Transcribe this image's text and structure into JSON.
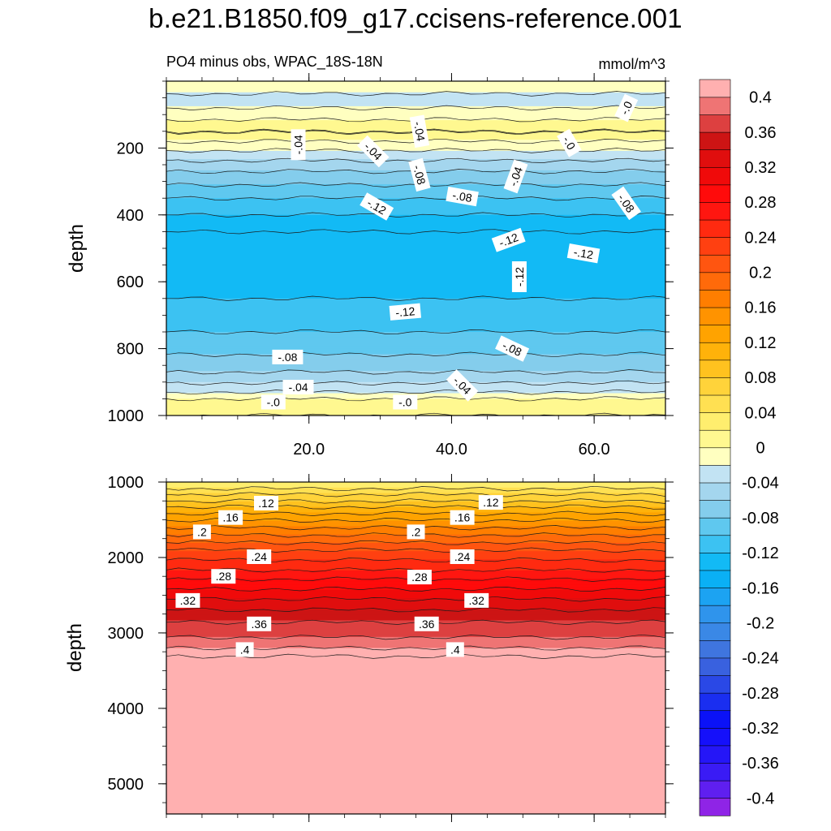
{
  "title": "b.e21.B1850.f09_g17.ccisens-reference.001",
  "chart_data": {
    "type": "contour",
    "variable": "PO4 minus obs, WPAC_18S-18N",
    "units": "mmol/m^3",
    "panels": [
      {
        "name": "upper",
        "ylabel": "depth",
        "ylim": [
          1000,
          0
        ],
        "yticks": [
          "200",
          "400",
          "600",
          "800",
          "1000"
        ],
        "ytick_values": [
          200,
          400,
          600,
          800,
          1000
        ],
        "xlim": [
          0,
          70
        ],
        "xtick_values": [
          20,
          40,
          60
        ],
        "xtick_labels": [
          "20.0",
          "40.0",
          "60.0"
        ],
        "depth_profile": [
          {
            "depth": 10,
            "value": -0.01
          },
          {
            "depth": 60,
            "value": -0.03
          },
          {
            "depth": 150,
            "value": 0.02
          },
          {
            "depth": 250,
            "value": -0.05
          },
          {
            "depth": 350,
            "value": -0.1
          },
          {
            "depth": 450,
            "value": -0.14
          },
          {
            "depth": 550,
            "value": -0.13
          },
          {
            "depth": 650,
            "value": -0.12
          },
          {
            "depth": 750,
            "value": -0.1
          },
          {
            "depth": 850,
            "value": -0.07
          },
          {
            "depth": 920,
            "value": -0.03
          },
          {
            "depth": 960,
            "value": 0.01
          },
          {
            "depth": 1000,
            "value": 0.02
          }
        ],
        "contour_labels": [
          {
            "text": "-.04",
            "x": 18.5,
            "depth": 190,
            "angle": 90
          },
          {
            "text": "-.04",
            "x": 29,
            "depth": 210,
            "angle": -45
          },
          {
            "text": "-.04",
            "x": 35.5,
            "depth": 150,
            "angle": -80
          },
          {
            "text": "-.08",
            "x": 35.5,
            "depth": 280,
            "angle": -75
          },
          {
            "text": "-.08",
            "x": 41.5,
            "depth": 345,
            "angle": -10
          },
          {
            "text": "-.12",
            "x": 29.5,
            "depth": 375,
            "angle": -30
          },
          {
            "text": "-.12",
            "x": 48,
            "depth": 475,
            "angle": 20
          },
          {
            "text": "-.12",
            "x": 58.5,
            "depth": 515,
            "angle": -10
          },
          {
            "text": "-.12",
            "x": 49.5,
            "depth": 585,
            "angle": 90
          },
          {
            "text": "-.04",
            "x": 49,
            "depth": 285,
            "angle": 70
          },
          {
            "text": "-.0",
            "x": 56.5,
            "depth": 185,
            "angle": -60
          },
          {
            "text": "-.0",
            "x": 64.5,
            "depth": 80,
            "angle": 65
          },
          {
            "text": "-.08",
            "x": 64.5,
            "depth": 365,
            "angle": -55
          },
          {
            "text": "-.12",
            "x": 33.5,
            "depth": 690,
            "angle": 5
          },
          {
            "text": "-.08",
            "x": 17,
            "depth": 825,
            "angle": 0
          },
          {
            "text": "-.08",
            "x": 48.5,
            "depth": 800,
            "angle": -25
          },
          {
            "text": "-.04",
            "x": 18.5,
            "depth": 915,
            "angle": 0
          },
          {
            "text": "-.04",
            "x": 41.5,
            "depth": 910,
            "angle": -45
          },
          {
            "text": "-.0",
            "x": 15,
            "depth": 960,
            "angle": 0
          },
          {
            "text": "-.0",
            "x": 33.5,
            "depth": 960,
            "angle": 0
          }
        ]
      },
      {
        "name": "lower",
        "ylabel": "depth",
        "ylim": [
          5400,
          1000
        ],
        "yticks": [
          "1000",
          "2000",
          "3000",
          "4000",
          "5000"
        ],
        "ytick_values": [
          1000,
          2000,
          3000,
          4000,
          5000
        ],
        "xlim": [
          0,
          70
        ],
        "xtick_values": [
          20,
          40,
          60
        ],
        "depth_profile": [
          {
            "depth": 1000,
            "value": 0.02
          },
          {
            "depth": 1450,
            "value": 0.13
          },
          {
            "depth": 1900,
            "value": 0.22
          },
          {
            "depth": 2350,
            "value": 0.29
          },
          {
            "depth": 2750,
            "value": 0.35
          },
          {
            "depth": 3150,
            "value": 0.39
          },
          {
            "depth": 3300,
            "value": 0.42
          },
          {
            "depth": 5400,
            "value": 0.42
          }
        ],
        "contour_labels": [
          {
            "text": ".12",
            "x": 14,
            "depth": 1280,
            "angle": 0
          },
          {
            "text": ".12",
            "x": 45.5,
            "depth": 1270,
            "angle": 0
          },
          {
            "text": ".16",
            "x": 9,
            "depth": 1470,
            "angle": 0
          },
          {
            "text": ".16",
            "x": 41.5,
            "depth": 1470,
            "angle": 0
          },
          {
            "text": ".2",
            "x": 5,
            "depth": 1660,
            "angle": 0
          },
          {
            "text": ".2",
            "x": 35,
            "depth": 1660,
            "angle": 0
          },
          {
            "text": ".24",
            "x": 13,
            "depth": 1990,
            "angle": 0
          },
          {
            "text": ".24",
            "x": 41.5,
            "depth": 1990,
            "angle": 0
          },
          {
            "text": ".28",
            "x": 8,
            "depth": 2250,
            "angle": 0
          },
          {
            "text": ".28",
            "x": 35.5,
            "depth": 2260,
            "angle": 0
          },
          {
            "text": ".32",
            "x": 3,
            "depth": 2570,
            "angle": 0
          },
          {
            "text": ".32",
            "x": 43.5,
            "depth": 2570,
            "angle": 0
          },
          {
            "text": ".36",
            "x": 13,
            "depth": 2880,
            "angle": 0
          },
          {
            "text": ".36",
            "x": 36.5,
            "depth": 2880,
            "angle": 0
          },
          {
            "text": ".4",
            "x": 11,
            "depth": 3220,
            "angle": 0
          },
          {
            "text": ".4",
            "x": 40.5,
            "depth": 3220,
            "angle": 0
          }
        ]
      }
    ],
    "colorbar": {
      "levels": [
        -0.42,
        -0.4,
        -0.38,
        -0.36,
        -0.34,
        -0.32,
        -0.3,
        -0.28,
        -0.26,
        -0.24,
        -0.22,
        -0.2,
        -0.18,
        -0.16,
        -0.14,
        -0.12,
        -0.1,
        -0.08,
        -0.06,
        -0.04,
        -0.02,
        0,
        0.02,
        0.04,
        0.06,
        0.08,
        0.1,
        0.12,
        0.14,
        0.16,
        0.18,
        0.2,
        0.22,
        0.24,
        0.26,
        0.28,
        0.3,
        0.32,
        0.34,
        0.36,
        0.38,
        0.4,
        0.42
      ],
      "colors": [
        "#8f24e6",
        "#5f1ff0",
        "#3a1bf5",
        "#2516f7",
        "#1510fa",
        "#0b12f7",
        "#1a2ef0",
        "#2a48e6",
        "#3961df",
        "#3f75df",
        "#3a88e6",
        "#2f94ec",
        "#1ca3f2",
        "#0ab0f5",
        "#12baf5",
        "#3cc2f2",
        "#5fc8ef",
        "#84cdec",
        "#a4d6ee",
        "#c2e3f3",
        "#ffffc0",
        "#fff890",
        "#ffee6e",
        "#ffe052",
        "#ffd33a",
        "#ffc21f",
        "#ffb20a",
        "#ffa300",
        "#ff9300",
        "#ff7e00",
        "#ff6a0a",
        "#ff5510",
        "#ff4011",
        "#ff2a10",
        "#ff1610",
        "#ff0b0b",
        "#f00a0a",
        "#e00e0e",
        "#cd1414",
        "#dd4040",
        "#ef7474",
        "#ffb0b0"
      ],
      "labels": [
        "-0.4",
        "-0.36",
        "-0.32",
        "-0.28",
        "-0.24",
        "-0.2",
        "-0.16",
        "-0.12",
        "-0.08",
        "-0.04",
        "0",
        "0.04",
        "0.08",
        "0.12",
        "0.16",
        "0.2",
        "0.24",
        "0.28",
        "0.32",
        "0.36",
        "0.4"
      ],
      "label_values": [
        -0.4,
        -0.36,
        -0.32,
        -0.28,
        -0.24,
        -0.2,
        -0.16,
        -0.12,
        -0.08,
        -0.04,
        0,
        0.04,
        0.08,
        0.12,
        0.16,
        0.2,
        0.24,
        0.28,
        0.32,
        0.36,
        0.4
      ]
    }
  }
}
